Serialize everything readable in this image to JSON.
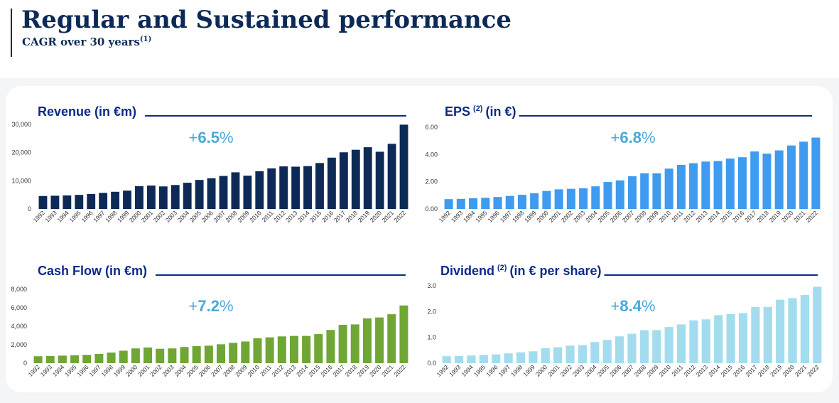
{
  "header": {
    "title": "Regular and Sustained performance",
    "subtitle": "CAGR over 30 years",
    "subtitle_note": "(1)"
  },
  "chart_data": [
    {
      "type": "bar",
      "title": "Revenue (in €m)",
      "title_note": "",
      "title_suffix": "",
      "cagr_sign": "+",
      "cagr_value": "6.5",
      "cagr_unit": "%",
      "color": "#0d2a57",
      "ylim": [
        0,
        30000
      ],
      "yticks": [
        "0",
        "10,000",
        "20,000",
        "30,000"
      ],
      "categories": [
        "1992",
        "1993",
        "1994",
        "1995",
        "1996",
        "1997",
        "1998",
        "1999",
        "2000",
        "2001",
        "2002",
        "2003",
        "2004",
        "2005",
        "2006",
        "2007",
        "2008",
        "2009",
        "2010",
        "2011",
        "2012",
        "2013",
        "2014",
        "2015",
        "2016",
        "2017",
        "2018",
        "2019",
        "2020",
        "2021",
        "2022"
      ],
      "values": [
        4600,
        4700,
        4800,
        5000,
        5300,
        5700,
        6100,
        6500,
        8100,
        8300,
        8000,
        8500,
        9300,
        10300,
        10900,
        11700,
        13000,
        11800,
        13400,
        14400,
        15100,
        15000,
        15200,
        16300,
        18200,
        20100,
        21000,
        21900,
        20300,
        23100,
        29900
      ]
    },
    {
      "type": "bar",
      "title": "EPS",
      "title_note": "(2)",
      "title_suffix": "(in €)",
      "cagr_sign": "+",
      "cagr_value": "6.8",
      "cagr_unit": "%",
      "color": "#3f9bef",
      "ylim": [
        0,
        6
      ],
      "yticks": [
        "0.00",
        "2.00",
        "4.00",
        "6.00"
      ],
      "categories": [
        "1992",
        "1993",
        "1994",
        "1995",
        "1996",
        "1997",
        "1998",
        "1999",
        "2000",
        "2001",
        "2002",
        "2003",
        "2004",
        "2005",
        "2006",
        "2007",
        "2008",
        "2009",
        "2010",
        "2011",
        "2012",
        "2013",
        "2014",
        "2015",
        "2016",
        "2017",
        "2018",
        "2019",
        "2020",
        "2021",
        "2022"
      ],
      "values": [
        0.72,
        0.74,
        0.79,
        0.82,
        0.88,
        0.96,
        1.04,
        1.16,
        1.32,
        1.44,
        1.48,
        1.52,
        1.66,
        1.98,
        2.1,
        2.4,
        2.62,
        2.62,
        2.96,
        3.24,
        3.36,
        3.48,
        3.52,
        3.7,
        3.8,
        4.22,
        4.06,
        4.3,
        4.66,
        4.94,
        5.24
      ]
    },
    {
      "type": "bar",
      "title": "Cash Flow (in €m)",
      "title_note": "",
      "title_suffix": "",
      "cagr_sign": "+",
      "cagr_value": "7.2",
      "cagr_unit": "%",
      "color": "#6fa634",
      "ylim": [
        0,
        8000
      ],
      "yticks": [
        "0",
        "2,000",
        "4,000",
        "6,000",
        "8,000"
      ],
      "categories": [
        "1992",
        "1993",
        "1994",
        "1995",
        "1996",
        "1997",
        "1998",
        "1999",
        "2000",
        "2001",
        "2002",
        "2003",
        "2004",
        "2005",
        "2006",
        "2007",
        "2008",
        "2009",
        "2010",
        "2011",
        "2012",
        "2013",
        "2014",
        "2015",
        "2016",
        "2017",
        "2018",
        "2019",
        "2020",
        "2021",
        "2022"
      ],
      "values": [
        750,
        780,
        820,
        860,
        900,
        1000,
        1150,
        1350,
        1600,
        1700,
        1560,
        1600,
        1750,
        1850,
        1900,
        2050,
        2200,
        2350,
        2700,
        2800,
        2900,
        2950,
        2950,
        3150,
        3600,
        4150,
        4200,
        4850,
        4950,
        5300,
        6250
      ]
    },
    {
      "type": "bar",
      "title": "Dividend",
      "title_note": "(2)",
      "title_suffix": "(in € per share)",
      "cagr_sign": "+",
      "cagr_value": "8.4",
      "cagr_unit": "%",
      "color": "#a3dcee",
      "ylim": [
        0,
        3
      ],
      "yticks": [
        "0.0",
        "1.0",
        "2.0",
        "3.0"
      ],
      "categories": [
        "1992",
        "1993",
        "1994",
        "1995",
        "1996",
        "1997",
        "1998",
        "1999",
        "2000",
        "2001",
        "2002",
        "2003",
        "2004",
        "2005",
        "2006",
        "2007",
        "2008",
        "2009",
        "2010",
        "2011",
        "2012",
        "2013",
        "2014",
        "2015",
        "2016",
        "2017",
        "2018",
        "2019",
        "2020",
        "2021",
        "2022"
      ],
      "values": [
        0.27,
        0.28,
        0.3,
        0.32,
        0.34,
        0.38,
        0.42,
        0.46,
        0.58,
        0.62,
        0.68,
        0.7,
        0.82,
        0.9,
        1.04,
        1.14,
        1.28,
        1.28,
        1.4,
        1.5,
        1.66,
        1.7,
        1.86,
        1.9,
        1.94,
        2.18,
        2.18,
        2.46,
        2.52,
        2.64,
        2.96
      ]
    }
  ]
}
